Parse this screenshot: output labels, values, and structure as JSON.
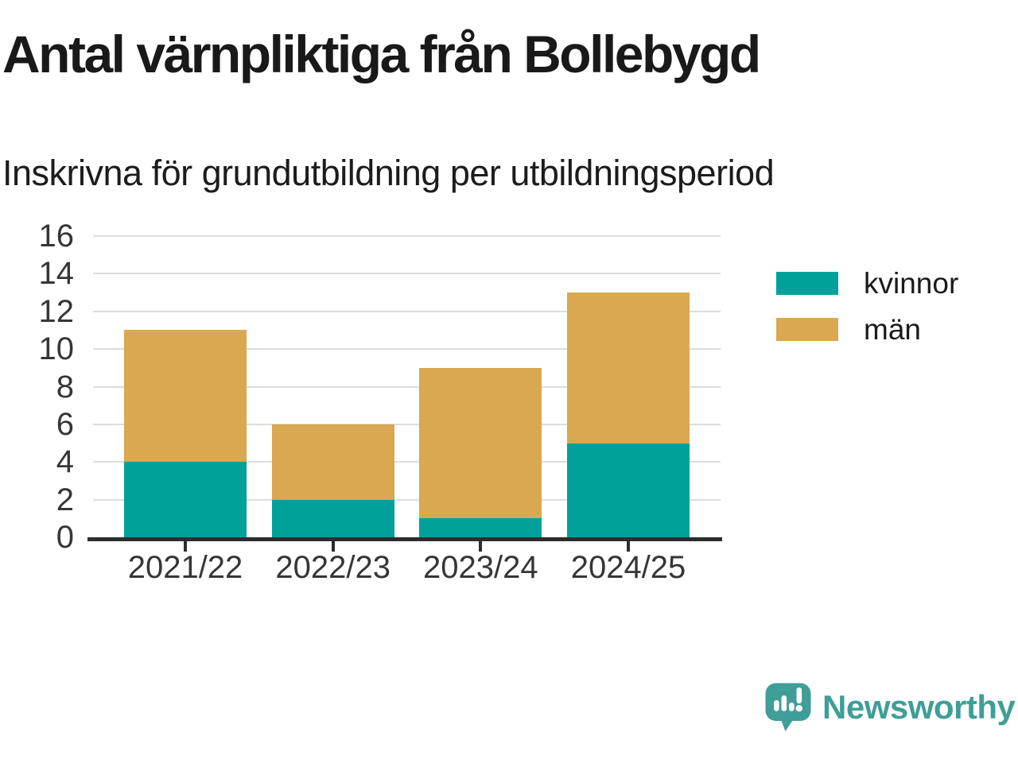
{
  "title": "Antal värnpliktiga från Bollebygd",
  "subtitle": "Inskrivna för grundutbildning per utbildningsperiod",
  "chart_data": {
    "type": "bar",
    "stacked": true,
    "title": "Antal värnpliktiga från Bollebygd",
    "subtitle": "Inskrivna för grundutbildning per utbildningsperiod",
    "categories": [
      "2021/22",
      "2022/23",
      "2023/24",
      "2024/25"
    ],
    "series": [
      {
        "name": "kvinnor",
        "color": "#00a19a",
        "values": [
          4,
          2,
          1,
          5
        ]
      },
      {
        "name": "män",
        "color": "#d9a850",
        "values": [
          7,
          4,
          8,
          8
        ]
      }
    ],
    "stack_totals": [
      11,
      6,
      9,
      13
    ],
    "xlabel": "",
    "ylabel": "",
    "ylim": [
      0,
      16
    ],
    "yticks": [
      0,
      2,
      4,
      6,
      8,
      10,
      12,
      14,
      16
    ],
    "grid": "horizontal",
    "legend_position": "right"
  },
  "legend": {
    "items": [
      {
        "label": "kvinnor",
        "color": "#00a19a"
      },
      {
        "label": "män",
        "color": "#d9a850"
      }
    ]
  },
  "branding": {
    "name": "Newsworthy",
    "logo_icon": "speech-bubble-bar-chart-icon",
    "color": "#3f9e97"
  },
  "colors": {
    "kvinnor": "#00a19a",
    "man": "#d9a850",
    "grid": "#dcdcdc",
    "axis": "#2d2d2d",
    "text": "#191919",
    "brand": "#3f9e97"
  }
}
